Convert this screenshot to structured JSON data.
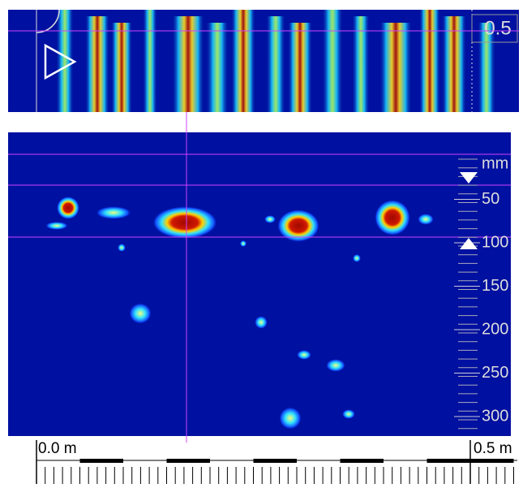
{
  "top_panel": {
    "label": "0.5"
  },
  "depth_scale": {
    "unit": "mm",
    "ticks": [
      50,
      100,
      150,
      200,
      250,
      300
    ]
  },
  "ruler": {
    "start_label": "0.0 m",
    "end_label": "0.5 m"
  }
}
